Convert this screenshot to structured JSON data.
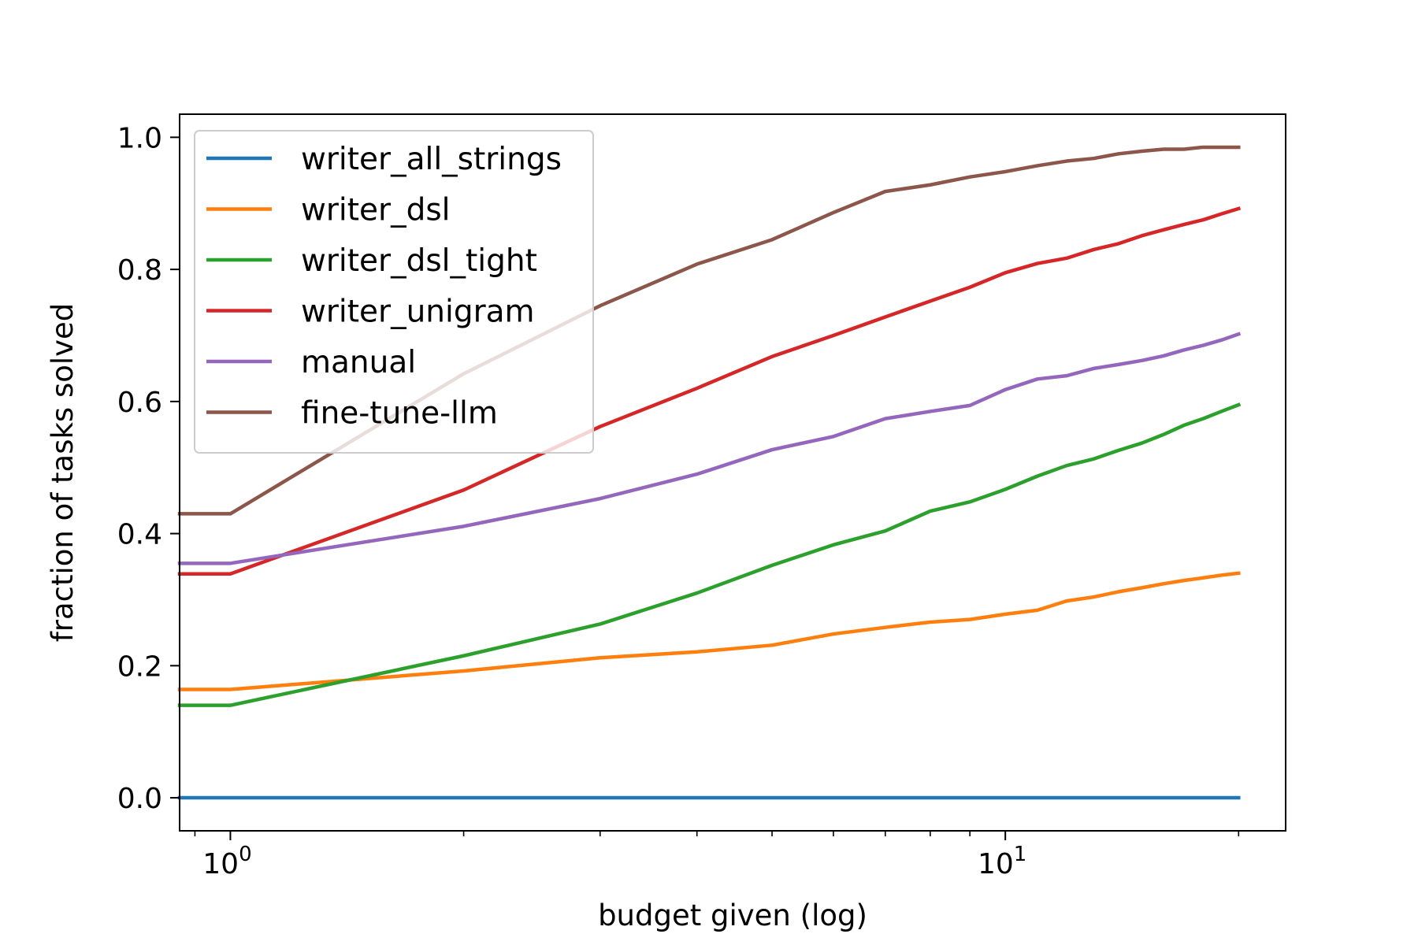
{
  "chart_data": {
    "type": "line",
    "title": "",
    "xlabel": "budget given (log)",
    "ylabel": "fraction of tasks solved",
    "xscale": "log",
    "xlim": [
      0.86,
      23
    ],
    "ylim": [
      -0.05,
      1.035
    ],
    "x_ticks": [
      {
        "value": 1,
        "base": "10",
        "exp": "0"
      },
      {
        "value": 10,
        "base": "10",
        "exp": "1"
      }
    ],
    "y_ticks": [
      {
        "value": 0.0,
        "label": "0.0"
      },
      {
        "value": 0.2,
        "label": "0.2"
      },
      {
        "value": 0.4,
        "label": "0.4"
      },
      {
        "value": 0.6,
        "label": "0.6"
      },
      {
        "value": 0.8,
        "label": "0.8"
      },
      {
        "value": 1.0,
        "label": "1.0"
      }
    ],
    "grid": false,
    "legend_position": "upper-left",
    "x": [
      0.86,
      1,
      2,
      3,
      4,
      5,
      6,
      7,
      8,
      9,
      10,
      11,
      12,
      13,
      14,
      15,
      16,
      17,
      18,
      19,
      20
    ],
    "series": [
      {
        "name": "writer_all_strings",
        "color": "#1f77b4",
        "values": [
          0,
          0,
          0,
          0,
          0,
          0,
          0,
          0,
          0,
          0,
          0,
          0,
          0,
          0,
          0,
          0,
          0,
          0,
          0,
          0,
          0
        ]
      },
      {
        "name": "writer_dsl",
        "color": "#ff7f0e",
        "values": [
          0.164,
          0.164,
          0.192,
          0.212,
          0.221,
          0.231,
          0.248,
          0.258,
          0.266,
          0.27,
          0.278,
          0.284,
          0.298,
          0.304,
          0.312,
          0.318,
          0.324,
          0.329,
          0.333,
          0.337,
          0.34
        ]
      },
      {
        "name": "writer_dsl_tight",
        "color": "#2ca02c",
        "values": [
          0.14,
          0.14,
          0.215,
          0.263,
          0.31,
          0.352,
          0.383,
          0.404,
          0.434,
          0.448,
          0.467,
          0.487,
          0.503,
          0.513,
          0.526,
          0.537,
          0.55,
          0.564,
          0.574,
          0.585,
          0.595
        ]
      },
      {
        "name": "writer_unigram",
        "color": "#d62728",
        "values": [
          0.339,
          0.339,
          0.466,
          0.562,
          0.62,
          0.668,
          0.7,
          0.728,
          0.752,
          0.773,
          0.795,
          0.809,
          0.817,
          0.83,
          0.839,
          0.851,
          0.86,
          0.868,
          0.875,
          0.884,
          0.892
        ]
      },
      {
        "name": "manual",
        "color": "#9467bd",
        "values": [
          0.355,
          0.355,
          0.411,
          0.453,
          0.49,
          0.527,
          0.547,
          0.574,
          0.585,
          0.594,
          0.618,
          0.634,
          0.639,
          0.65,
          0.656,
          0.662,
          0.669,
          0.678,
          0.685,
          0.693,
          0.702
        ]
      },
      {
        "name": "fine-tune-llm",
        "color": "#8c564b",
        "values": [
          0.43,
          0.43,
          0.642,
          0.745,
          0.808,
          0.845,
          0.886,
          0.918,
          0.928,
          0.94,
          0.948,
          0.957,
          0.964,
          0.968,
          0.975,
          0.979,
          0.982,
          0.982,
          0.985,
          0.985,
          0.985
        ]
      }
    ]
  }
}
